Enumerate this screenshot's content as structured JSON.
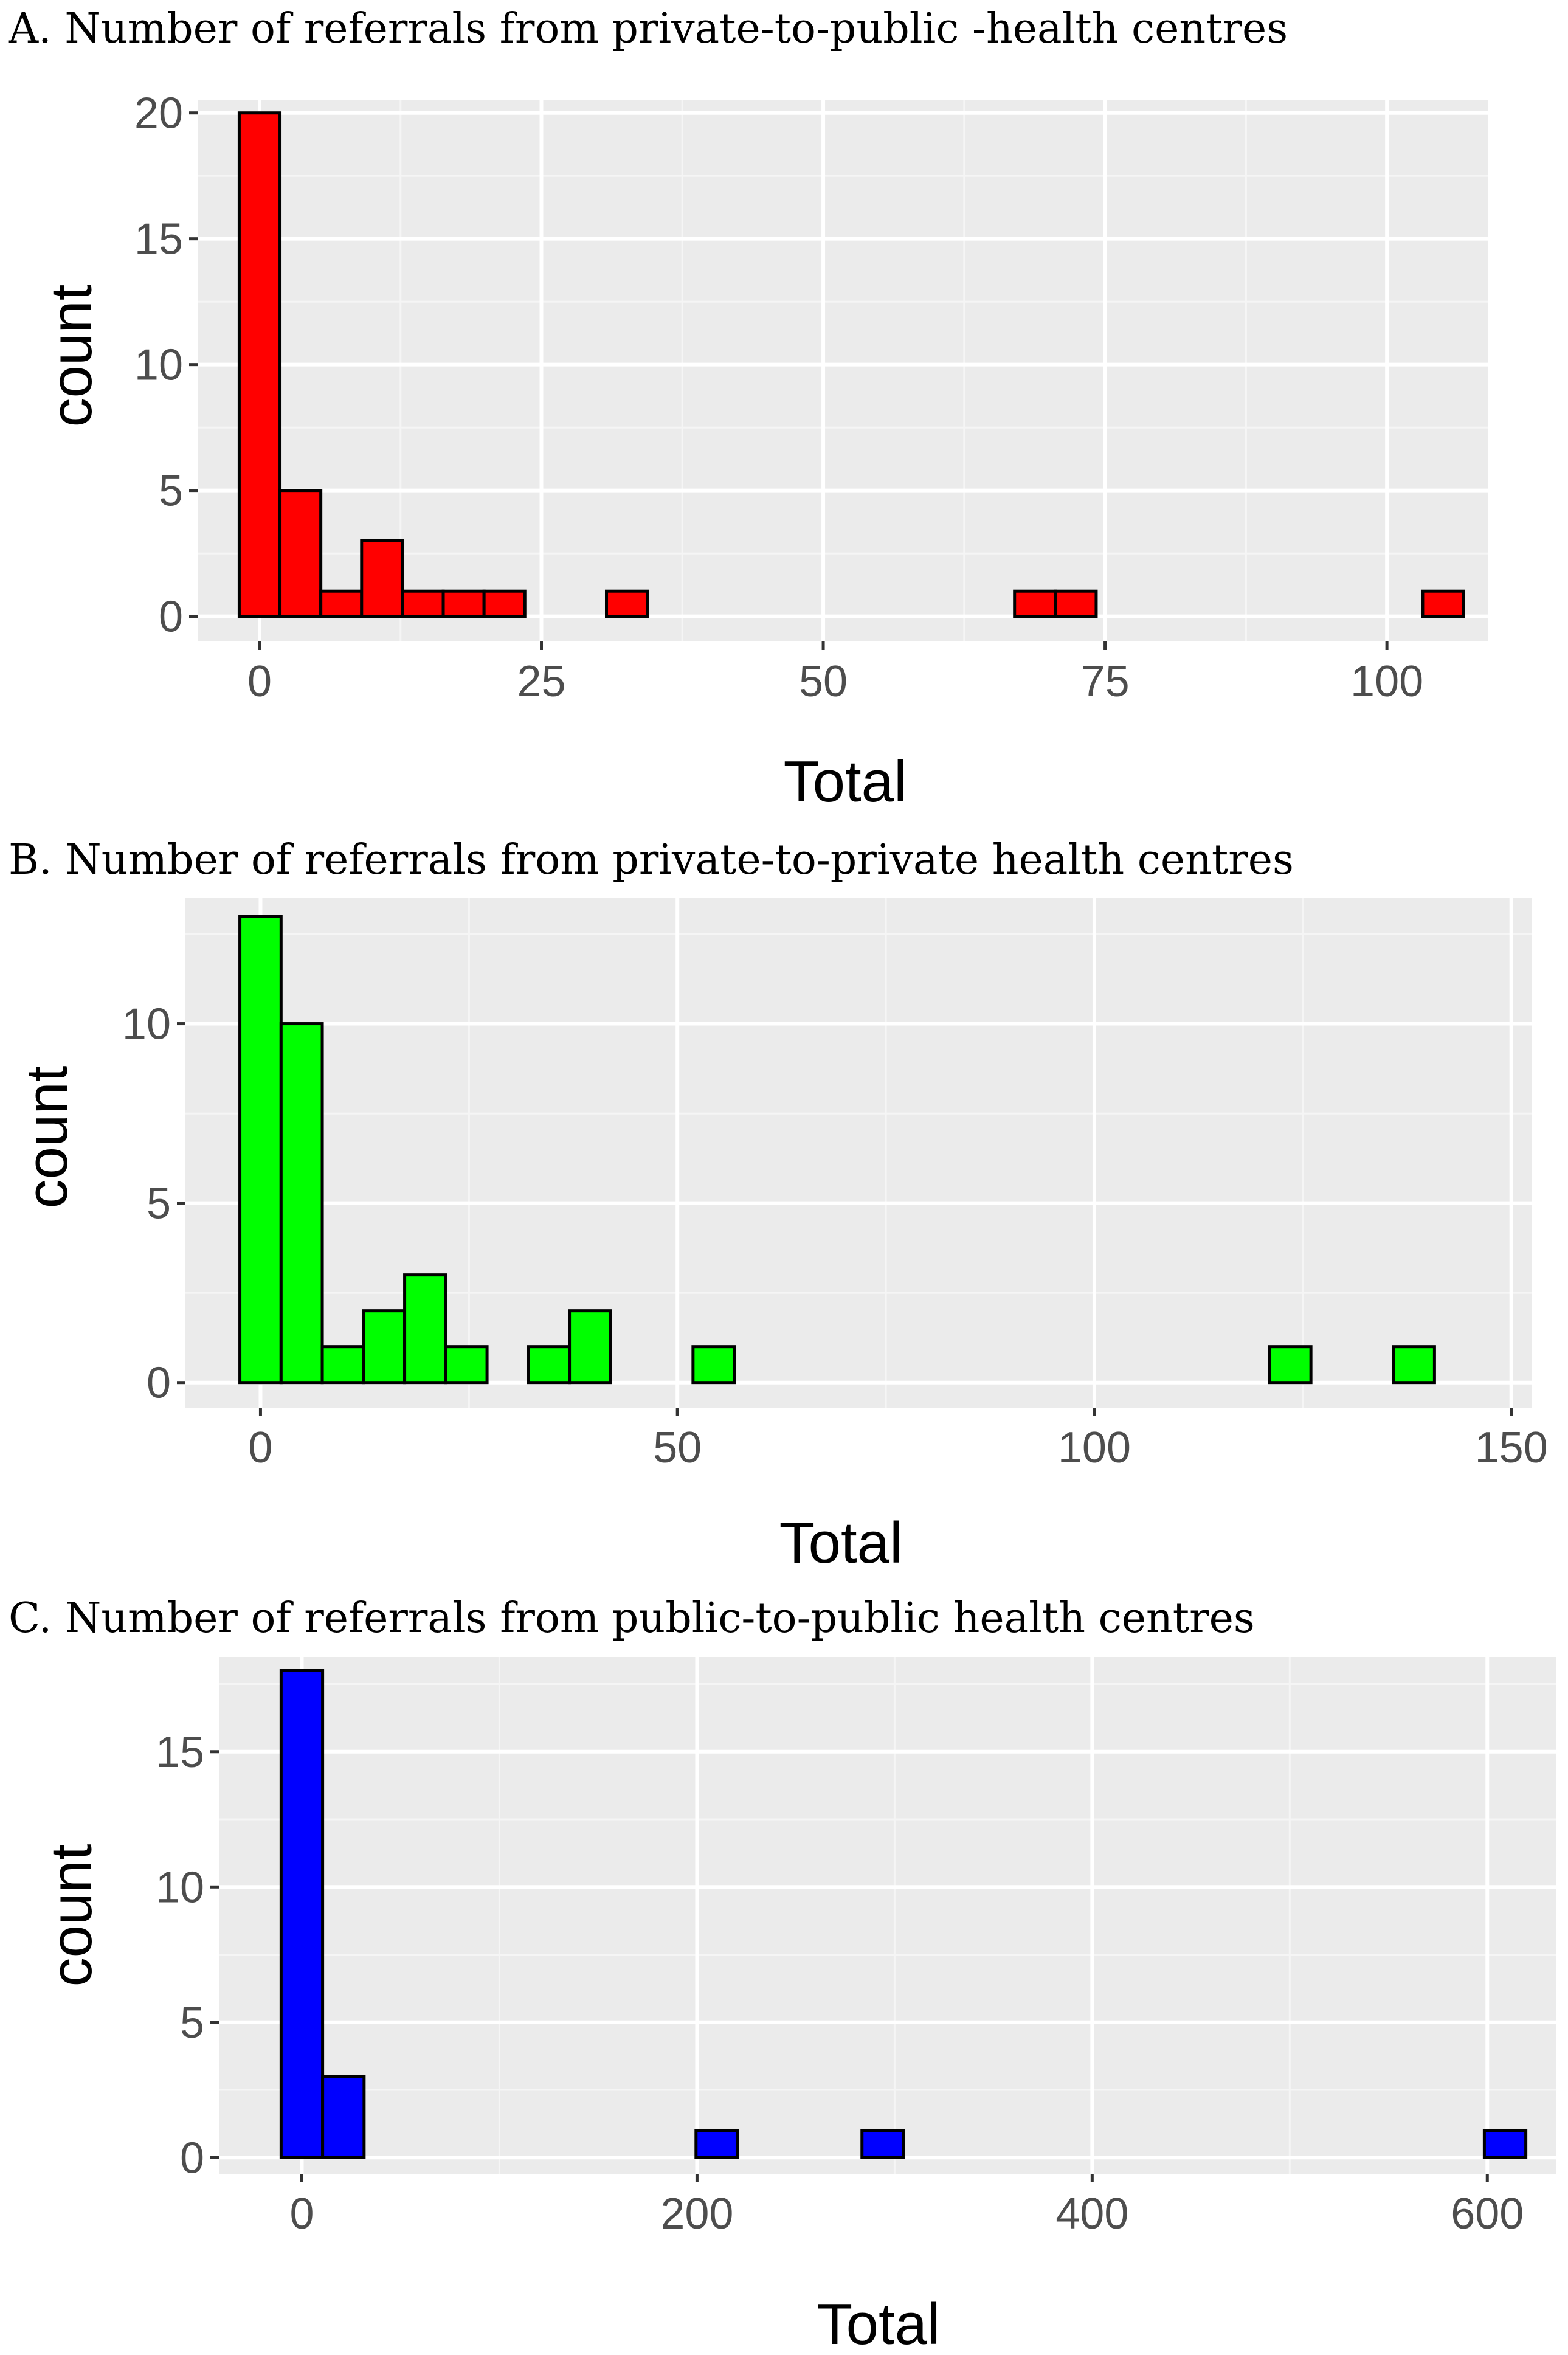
{
  "chart_data": [
    {
      "type": "bar",
      "title": "A. Number of referrals from private-to-public -health centres",
      "xlabel": "Total",
      "ylabel": "count",
      "fill": "#ff0000",
      "bin_width": 3.62,
      "xlim": [
        -5.5,
        109
      ],
      "ylim": [
        -1,
        20.5
      ],
      "x_ticks": [
        0,
        25,
        50,
        75,
        100
      ],
      "x_tick_labels": [
        "0",
        "25",
        "50",
        "75",
        "100"
      ],
      "y_ticks": [
        0,
        5,
        10,
        15,
        20
      ],
      "y_tick_labels": [
        "0",
        "5",
        "10",
        "15",
        "20"
      ],
      "bins": [
        {
          "x": 0.0,
          "count": 20
        },
        {
          "x": 3.62,
          "count": 5
        },
        {
          "x": 7.24,
          "count": 1
        },
        {
          "x": 10.86,
          "count": 3
        },
        {
          "x": 14.48,
          "count": 1
        },
        {
          "x": 18.1,
          "count": 1
        },
        {
          "x": 21.72,
          "count": 1
        },
        {
          "x": 25.34,
          "count": 0
        },
        {
          "x": 28.96,
          "count": 0
        },
        {
          "x": 32.58,
          "count": 1
        },
        {
          "x": 36.2,
          "count": 0
        },
        {
          "x": 39.82,
          "count": 0
        },
        {
          "x": 43.44,
          "count": 0
        },
        {
          "x": 47.06,
          "count": 0
        },
        {
          "x": 50.68,
          "count": 0
        },
        {
          "x": 54.3,
          "count": 0
        },
        {
          "x": 57.92,
          "count": 0
        },
        {
          "x": 61.54,
          "count": 0
        },
        {
          "x": 65.16,
          "count": 0
        },
        {
          "x": 68.78,
          "count": 1
        },
        {
          "x": 72.4,
          "count": 1
        },
        {
          "x": 76.02,
          "count": 0
        },
        {
          "x": 79.64,
          "count": 0
        },
        {
          "x": 83.26,
          "count": 0
        },
        {
          "x": 86.88,
          "count": 0
        },
        {
          "x": 90.5,
          "count": 0
        },
        {
          "x": 94.12,
          "count": 0
        },
        {
          "x": 97.74,
          "count": 0
        },
        {
          "x": 101.36,
          "count": 0
        },
        {
          "x": 104.98,
          "count": 1
        }
      ]
    },
    {
      "type": "bar",
      "title": "B. Number of referrals from private-to-private health centres",
      "xlabel": "Total",
      "ylabel": "count",
      "fill": "#00ff00",
      "bin_width": 4.94,
      "xlim": [
        -9,
        152.5
      ],
      "ylim": [
        -0.7,
        13.5
      ],
      "x_ticks": [
        0,
        50,
        100,
        150
      ],
      "x_tick_labels": [
        "0",
        "50",
        "100",
        "150"
      ],
      "y_ticks": [
        0,
        5,
        10
      ],
      "y_tick_labels": [
        "0",
        "5",
        "10"
      ],
      "bins": [
        {
          "x": 0.0,
          "count": 13
        },
        {
          "x": 4.94,
          "count": 10
        },
        {
          "x": 9.88,
          "count": 1
        },
        {
          "x": 14.82,
          "count": 2
        },
        {
          "x": 19.76,
          "count": 3
        },
        {
          "x": 24.7,
          "count": 1
        },
        {
          "x": 29.64,
          "count": 0
        },
        {
          "x": 34.58,
          "count": 1
        },
        {
          "x": 39.52,
          "count": 2
        },
        {
          "x": 44.46,
          "count": 0
        },
        {
          "x": 49.4,
          "count": 0
        },
        {
          "x": 54.34,
          "count": 1
        },
        {
          "x": 59.28,
          "count": 0
        },
        {
          "x": 64.22,
          "count": 0
        },
        {
          "x": 69.16,
          "count": 0
        },
        {
          "x": 74.1,
          "count": 0
        },
        {
          "x": 79.04,
          "count": 0
        },
        {
          "x": 83.98,
          "count": 0
        },
        {
          "x": 88.92,
          "count": 0
        },
        {
          "x": 93.86,
          "count": 0
        },
        {
          "x": 98.8,
          "count": 0
        },
        {
          "x": 103.74,
          "count": 0
        },
        {
          "x": 108.68,
          "count": 0
        },
        {
          "x": 113.62,
          "count": 0
        },
        {
          "x": 118.56,
          "count": 0
        },
        {
          "x": 123.5,
          "count": 1
        },
        {
          "x": 128.44,
          "count": 0
        },
        {
          "x": 133.38,
          "count": 0
        },
        {
          "x": 138.32,
          "count": 1
        }
      ]
    },
    {
      "type": "bar",
      "title": "C. Number of referrals from public-to-public health centres",
      "xlabel": "Total",
      "ylabel": "count",
      "fill": "#0000ff",
      "bin_width": 21.0,
      "xlim": [
        -42,
        635
      ],
      "ylim": [
        -0.6,
        18.5
      ],
      "x_ticks": [
        0,
        200,
        400,
        600
      ],
      "x_tick_labels": [
        "0",
        "200",
        "400",
        "600"
      ],
      "y_ticks": [
        0,
        5,
        10,
        15
      ],
      "y_tick_labels": [
        "0",
        "5",
        "10",
        "15"
      ],
      "bins": [
        {
          "x": 0.0,
          "count": 18
        },
        {
          "x": 21.0,
          "count": 3
        },
        {
          "x": 42.0,
          "count": 0
        },
        {
          "x": 63.0,
          "count": 0
        },
        {
          "x": 84.0,
          "count": 0
        },
        {
          "x": 105.0,
          "count": 0
        },
        {
          "x": 126.0,
          "count": 0
        },
        {
          "x": 147.0,
          "count": 0
        },
        {
          "x": 168.0,
          "count": 0
        },
        {
          "x": 189.0,
          "count": 0
        },
        {
          "x": 210.0,
          "count": 1
        },
        {
          "x": 231.0,
          "count": 0
        },
        {
          "x": 252.0,
          "count": 0
        },
        {
          "x": 273.0,
          "count": 0
        },
        {
          "x": 294.0,
          "count": 1
        },
        {
          "x": 315.0,
          "count": 0
        },
        {
          "x": 336.0,
          "count": 0
        },
        {
          "x": 357.0,
          "count": 0
        },
        {
          "x": 378.0,
          "count": 0
        },
        {
          "x": 399.0,
          "count": 0
        },
        {
          "x": 420.0,
          "count": 0
        },
        {
          "x": 441.0,
          "count": 0
        },
        {
          "x": 462.0,
          "count": 0
        },
        {
          "x": 483.0,
          "count": 0
        },
        {
          "x": 504.0,
          "count": 0
        },
        {
          "x": 525.0,
          "count": 0
        },
        {
          "x": 546.0,
          "count": 0
        },
        {
          "x": 567.0,
          "count": 0
        },
        {
          "x": 588.0,
          "count": 0
        },
        {
          "x": 609.0,
          "count": 1
        }
      ]
    }
  ]
}
